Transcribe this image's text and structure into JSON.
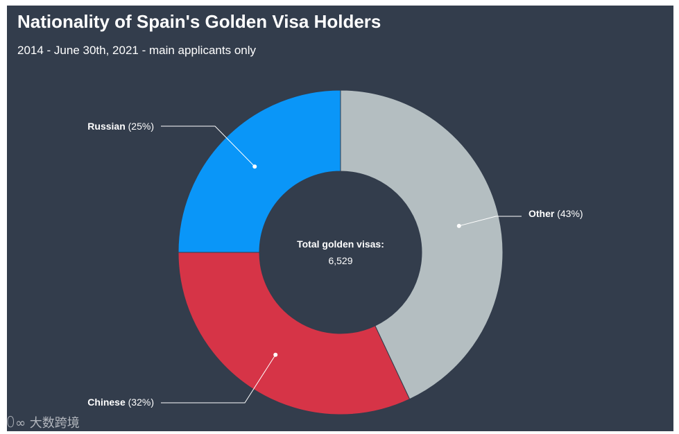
{
  "chart_data": {
    "type": "pie",
    "title": "Nationality of Spain's Golden Visa Holders",
    "subtitle": "2014 - June 30th, 2021 - main applicants only",
    "center_label": "Total golden visas:",
    "center_value": "6,529",
    "slices": [
      {
        "name": "Other",
        "percent": 43,
        "pct_label": "(43%)",
        "color": "#b4bec1"
      },
      {
        "name": "Chinese",
        "percent": 32,
        "pct_label": "(32%)",
        "color": "#d63447"
      },
      {
        "name": "Russian",
        "percent": 25,
        "pct_label": "(25%)",
        "color": "#0a96f8"
      }
    ]
  },
  "watermark": {
    "icon": "watermark-logo-icon",
    "text": "大数跨境"
  }
}
